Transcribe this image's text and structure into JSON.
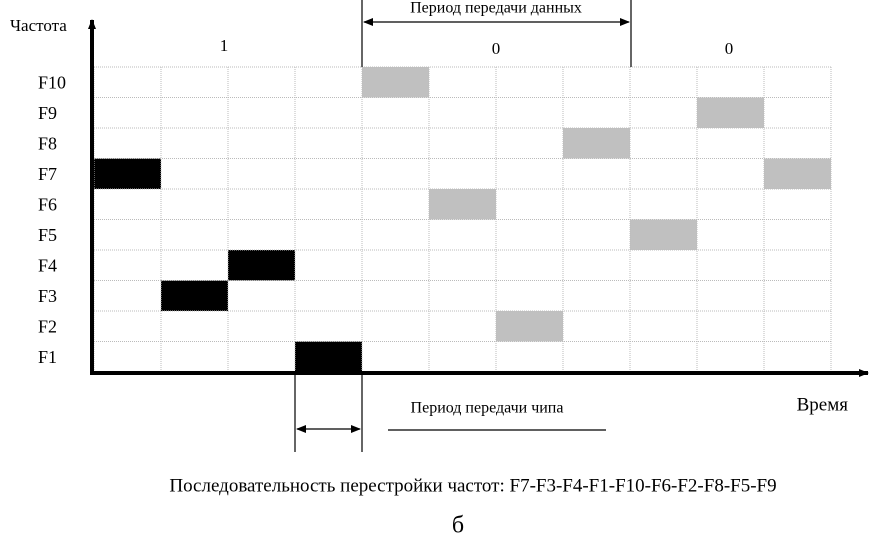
{
  "axes": {
    "y_label": "Частота",
    "x_label": "Время"
  },
  "bits": [
    "1",
    "0",
    "0"
  ],
  "data_period": "Период передачи данных",
  "chip_period": "Период передачи чипа",
  "row_labels": [
    "F10",
    "F9",
    "F8",
    "F7",
    "F6",
    "F5",
    "F4",
    "F3",
    "F2",
    "F1"
  ],
  "caption": "Последовательность перестройки частот: F7-F3-F4-F1-F10-F6-F2-F8-F5-F9",
  "figure_label": "б"
}
